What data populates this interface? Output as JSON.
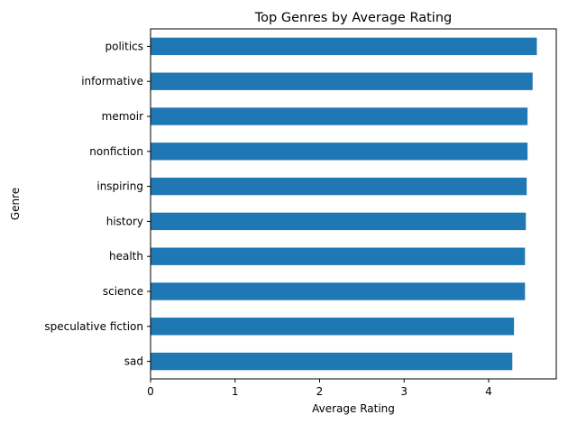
{
  "chart_data": {
    "type": "bar",
    "orientation": "horizontal",
    "title": "Top Genres by Average Rating",
    "xlabel": "Average Rating",
    "ylabel": "Genre",
    "categories": [
      "politics",
      "informative",
      "memoir",
      "nonfiction",
      "inspiring",
      "history",
      "health",
      "science",
      "speculative fiction",
      "sad"
    ],
    "values": [
      4.57,
      4.52,
      4.46,
      4.46,
      4.45,
      4.44,
      4.43,
      4.43,
      4.3,
      4.28
    ],
    "xlim": [
      0,
      4.8
    ],
    "xticks": [
      0,
      1,
      2,
      3,
      4
    ],
    "grid": false,
    "bar_color": "#1f77b4"
  }
}
